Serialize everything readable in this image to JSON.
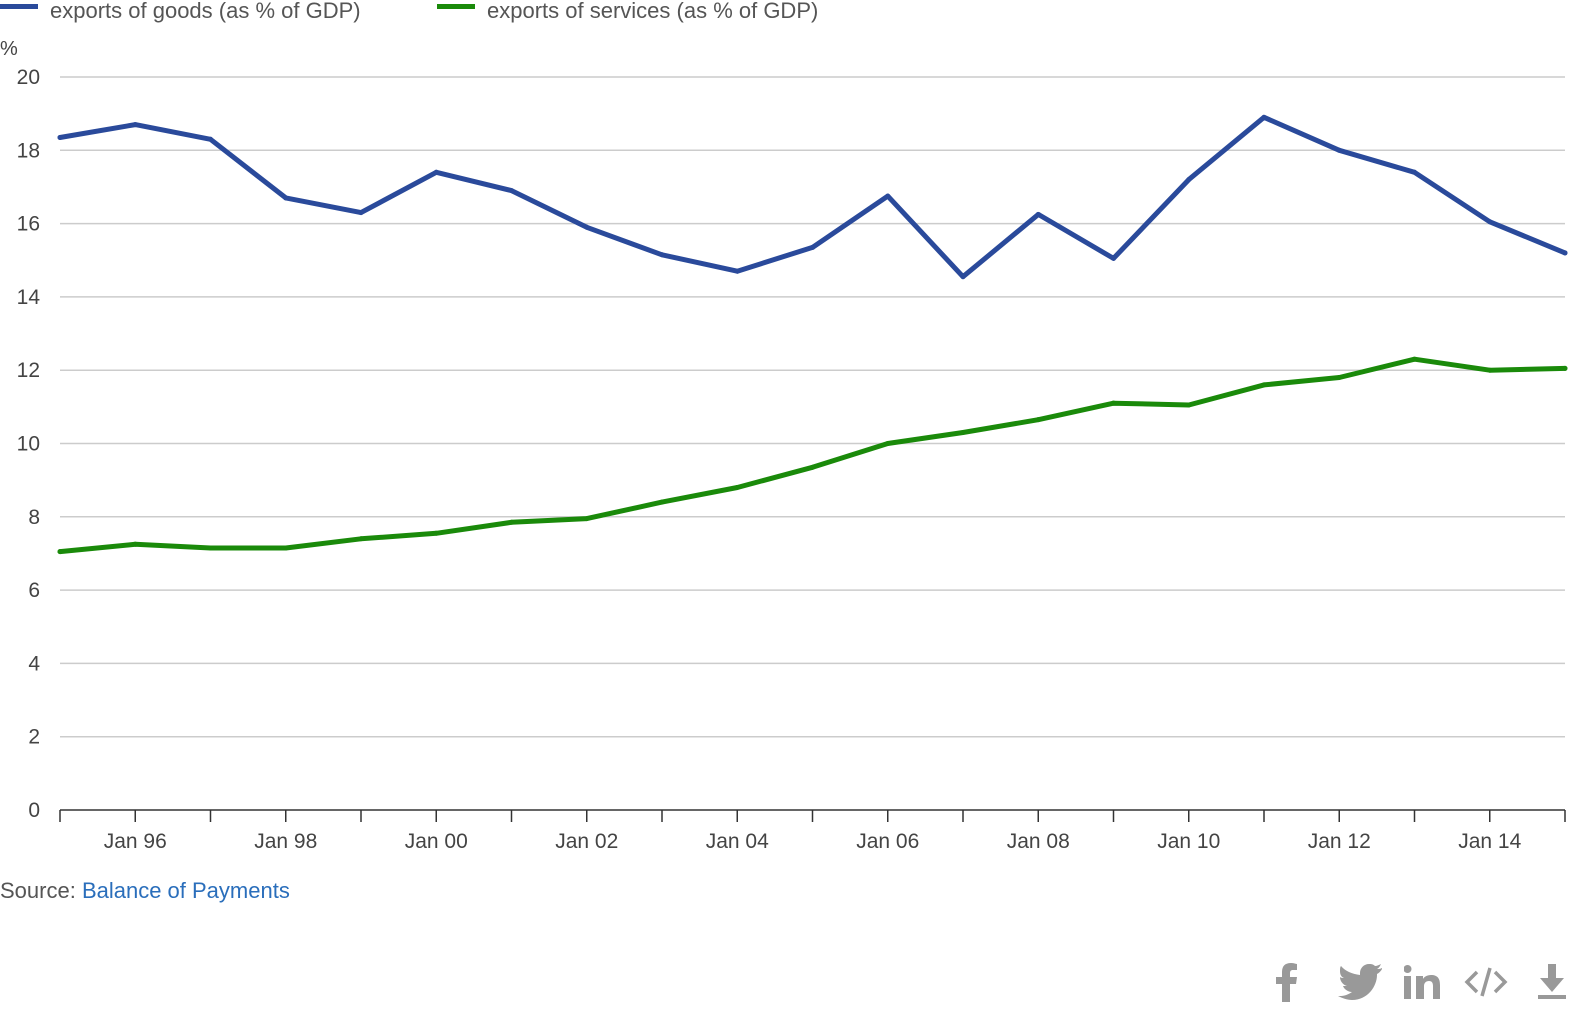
{
  "chart_data": {
    "type": "line",
    "unit_label": "%",
    "x": [
      "1995",
      "1996",
      "1997",
      "1998",
      "1999",
      "2000",
      "2001",
      "2002",
      "2003",
      "2004",
      "2005",
      "2006",
      "2007",
      "2008",
      "2009",
      "2010",
      "2011",
      "2012",
      "2013",
      "2014",
      "2015"
    ],
    "x_ticks": [
      {
        "x": "1996",
        "label": "Jan 96"
      },
      {
        "x": "1998",
        "label": "Jan 98"
      },
      {
        "x": "2000",
        "label": "Jan 00"
      },
      {
        "x": "2002",
        "label": "Jan 02"
      },
      {
        "x": "2004",
        "label": "Jan 04"
      },
      {
        "x": "2006",
        "label": "Jan 06"
      },
      {
        "x": "2008",
        "label": "Jan 08"
      },
      {
        "x": "2010",
        "label": "Jan 10"
      },
      {
        "x": "2012",
        "label": "Jan 12"
      },
      {
        "x": "2014",
        "label": "Jan 14"
      }
    ],
    "ylim": [
      0,
      20
    ],
    "y_ticks": [
      0,
      2,
      4,
      6,
      8,
      10,
      12,
      14,
      16,
      18,
      20
    ],
    "grid": true,
    "legend_position": "top-left",
    "series": [
      {
        "name": "exports of goods (as % of GDP)",
        "color": "#2a4a9b",
        "values": [
          18.35,
          18.7,
          18.3,
          16.7,
          16.3,
          17.4,
          16.9,
          15.9,
          15.15,
          14.7,
          15.35,
          16.75,
          14.55,
          16.25,
          15.05,
          17.2,
          18.9,
          18.0,
          17.4,
          16.05,
          15.2
        ]
      },
      {
        "name": "exports of services (as % of GDP)",
        "color": "#1a8a0a",
        "values": [
          7.05,
          7.25,
          7.15,
          7.15,
          7.4,
          7.55,
          7.85,
          7.95,
          8.4,
          8.8,
          9.35,
          10.0,
          10.3,
          10.65,
          11.1,
          11.05,
          11.6,
          11.8,
          12.3,
          12.0,
          12.05
        ]
      }
    ]
  },
  "source": {
    "prefix": "Source: ",
    "link_text": "Balance of Payments"
  },
  "share_icons": [
    "facebook-icon",
    "twitter-icon",
    "linkedin-icon",
    "embed-code-icon",
    "download-icon"
  ],
  "colors": {
    "grid": "#cccccc",
    "axis": "#333333",
    "icon": "#999999",
    "link": "#2a6ebb"
  }
}
